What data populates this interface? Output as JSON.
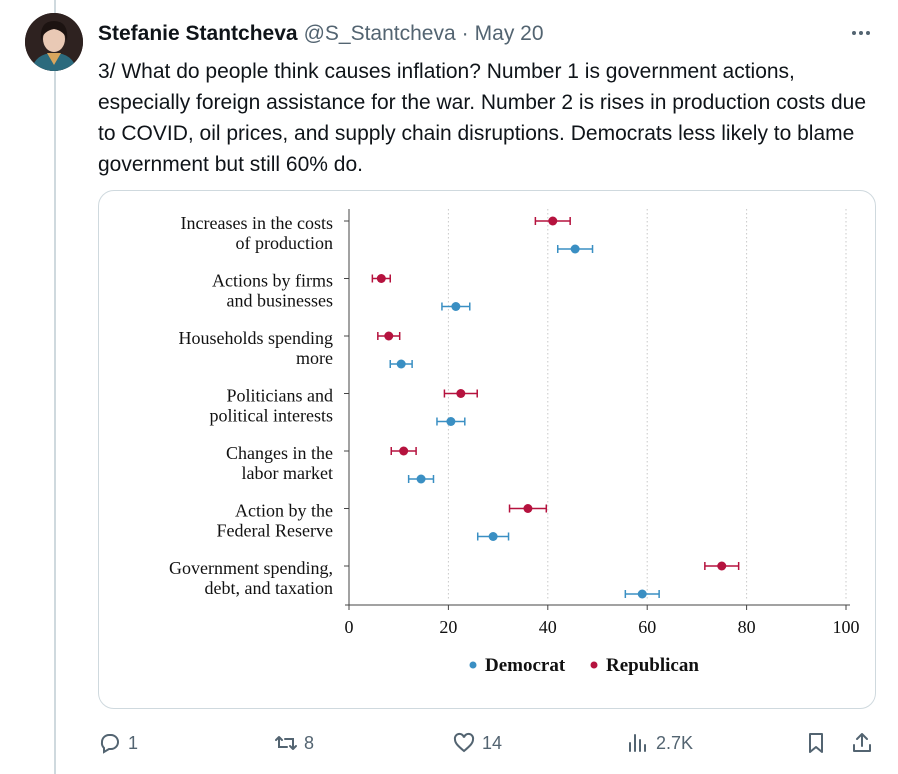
{
  "tweet": {
    "author_name": "Stefanie Stantcheva",
    "handle": "@S_Stantcheva",
    "separator": "·",
    "date": "May 20",
    "text": "3/ What do people think causes inflation? Number 1 is government actions, especially foreign assistance for the war. Number 2 is rises in production costs due to COVID, oil prices, and supply chain disruptions. Democrats less likely to blame government but still 60% do."
  },
  "actions": {
    "reply_count": "1",
    "retweet_count": "8",
    "like_count": "14",
    "views_count": "2.7K"
  },
  "icons": {
    "more": "more-icon",
    "reply": "reply-icon",
    "retweet": "retweet-icon",
    "like": "heart-icon",
    "views": "views-icon",
    "bookmark": "bookmark-icon",
    "share": "share-icon"
  },
  "colors": {
    "democrat": "#3a8fc3",
    "republican": "#b5123e",
    "muted": "#536471"
  },
  "chart_data": {
    "type": "scatter",
    "categories": [
      [
        "Increases in the costs",
        "of production"
      ],
      [
        "Actions by firms",
        "and businesses"
      ],
      [
        "Households spending",
        "more"
      ],
      [
        "Politicians and",
        "political interests"
      ],
      [
        "Changes in the",
        "labor market"
      ],
      [
        "Action by the",
        "Federal Reserve"
      ],
      [
        "Government spending,",
        "debt, and taxation"
      ]
    ],
    "series": [
      {
        "name": "Republican",
        "values": [
          41,
          6.5,
          8,
          22.5,
          11,
          36,
          75
        ],
        "error": [
          3.5,
          1.8,
          2.2,
          3.3,
          2.5,
          3.7,
          3.4
        ]
      },
      {
        "name": "Democrat",
        "values": [
          45.5,
          21.5,
          10.5,
          20.5,
          14.5,
          29,
          59
        ],
        "error": [
          3.5,
          2.8,
          2.2,
          2.8,
          2.5,
          3.1,
          3.4
        ]
      }
    ],
    "xlim": [
      0,
      100
    ],
    "xticks": [
      0,
      20,
      40,
      60,
      80,
      100
    ],
    "legend": [
      "Democrat",
      "Republican"
    ],
    "grid": true,
    "legend_position": "bottom"
  }
}
